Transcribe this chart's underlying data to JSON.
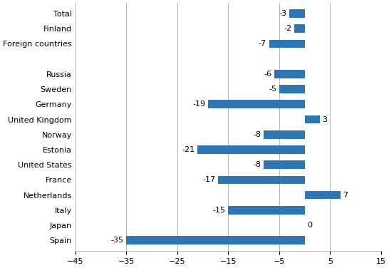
{
  "categories": [
    "Spain",
    "Japan",
    "Italy",
    "Netherlands",
    "France",
    "United States",
    "Estonia",
    "Norway",
    "United Kingdom",
    "Germany",
    "Sweden",
    "Russia",
    "",
    "Foreign countries",
    "Finland",
    "Total"
  ],
  "values": [
    -35,
    0,
    -15,
    7,
    -17,
    -8,
    -21,
    -8,
    3,
    -19,
    -5,
    -6,
    null,
    -7,
    -2,
    -3
  ],
  "bar_color": "#2E75B6",
  "xlim": [
    -45,
    15
  ],
  "xticks": [
    -45,
    -35,
    -25,
    -15,
    -5,
    5,
    15
  ],
  "label_fontsize": 8.0,
  "tick_fontsize": 8.0,
  "bar_height": 0.55
}
